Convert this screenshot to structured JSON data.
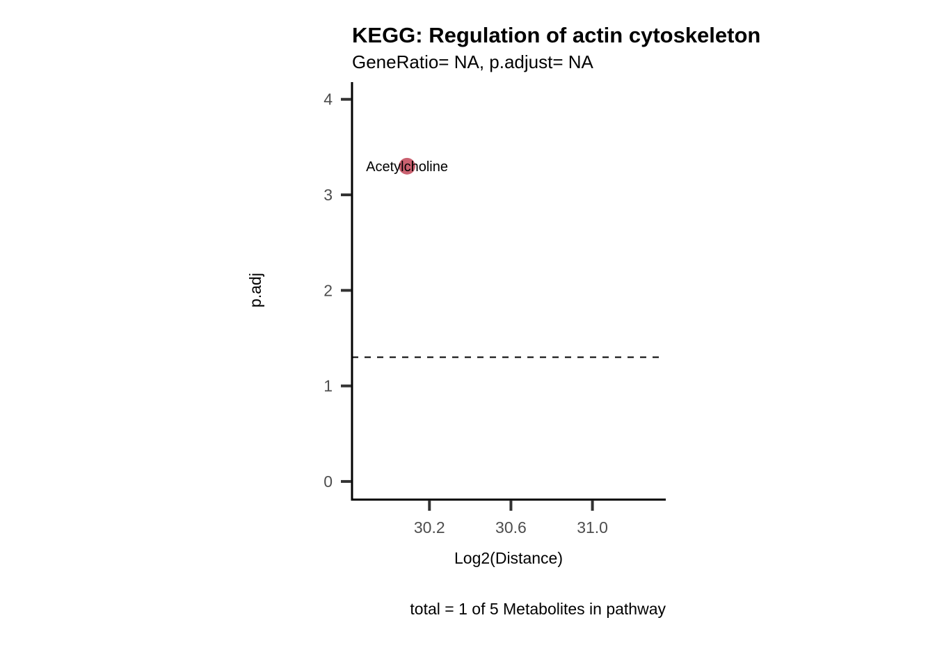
{
  "chart_data": {
    "type": "scatter",
    "title": "KEGG: Regulation of actin cytoskeleton",
    "subtitle": "GeneRatio= NA, p.adjust= NA",
    "xlabel": "Log2(Distance)",
    "ylabel": "p.adj",
    "caption": "total = 1 of 5 Metabolites in pathway",
    "xlim": [
      29.82,
      31.36
    ],
    "ylim": [
      -0.19,
      4.18
    ],
    "x_ticks": [
      30.2,
      30.6,
      31.0
    ],
    "x_tick_labels": [
      "30.2",
      "30.6",
      "31.0"
    ],
    "y_ticks": [
      0,
      1,
      2,
      3,
      4
    ],
    "y_tick_labels": [
      "0",
      "1",
      "2",
      "3",
      "4"
    ],
    "threshold": {
      "y": 1.3,
      "style": "dashed"
    },
    "points": [
      {
        "label": "Acetylcholine",
        "x": 30.09,
        "y": 3.3,
        "color": "#c45060"
      }
    ],
    "grid": false,
    "legend": "none"
  }
}
